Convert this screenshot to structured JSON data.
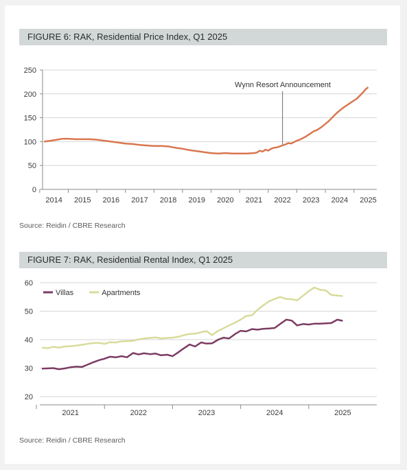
{
  "figure6": {
    "header": "FIGURE 6: RAK, Residential Price Index, Q1 2025",
    "source": "Source: Reidin / CBRE Research"
  },
  "figure7": {
    "header": "FIGURE 7: RAK, Residential Rental Index, Q1 2025",
    "source": "Source: Reidin / CBRE Research"
  },
  "chart_data": [
    {
      "type": "line",
      "title": "FIGURE 6: RAK, Residential Price Index, Q1 2025",
      "xlabel": "",
      "ylabel": "",
      "ylim": [
        0,
        250
      ],
      "yticks": [
        "0",
        "50",
        "100",
        "150",
        "200",
        "250"
      ],
      "xticks": [
        "2014",
        "2015",
        "2016",
        "2017",
        "2018",
        "2019",
        "2020",
        "2021",
        "2022",
        "2023",
        "2024",
        "2025"
      ],
      "xlim": [
        2013.6,
        2025.3
      ],
      "grid": true,
      "color": "#d9764f",
      "annotation": {
        "text": "Wynn Resort Announcement",
        "x": 2022.0,
        "y": 90
      },
      "series": [
        {
          "x": [
            2013.65,
            2013.9,
            2014.1,
            2014.3,
            2014.5,
            2014.75,
            2015.0,
            2015.25,
            2015.5,
            2015.75,
            2016.0,
            2016.25,
            2016.5,
            2016.75,
            2017.0,
            2017.25,
            2017.5,
            2017.75,
            2018.0,
            2018.25,
            2018.5,
            2018.75,
            2019.0,
            2019.25,
            2019.5,
            2019.75,
            2020.0,
            2020.25,
            2020.5,
            2020.75,
            2021.0,
            2021.1,
            2021.2,
            2021.3,
            2021.4,
            2021.5,
            2021.6,
            2021.7,
            2021.8,
            2021.9,
            2022.0,
            2022.1,
            2022.2,
            2022.3,
            2022.4,
            2022.5,
            2022.6,
            2022.7,
            2022.8,
            2022.9,
            2023.0,
            2023.1,
            2023.2,
            2023.3,
            2023.4,
            2023.5,
            2023.6,
            2023.7,
            2023.8,
            2023.9,
            2024.0,
            2024.1,
            2024.2,
            2024.3,
            2024.4,
            2024.5,
            2024.6,
            2024.7,
            2024.8,
            2024.9,
            2025.0
          ],
          "values": [
            100,
            102,
            104,
            106,
            106,
            105,
            105,
            105,
            104,
            102,
            100,
            98,
            96,
            95,
            93,
            92,
            91,
            91,
            90,
            87,
            85,
            82,
            80,
            78,
            76,
            75,
            76,
            75,
            75,
            75,
            76,
            77,
            81,
            79,
            83,
            81,
            85,
            87,
            88,
            90,
            92,
            94,
            97,
            96,
            99,
            102,
            104,
            107,
            110,
            114,
            118,
            122,
            124,
            128,
            132,
            137,
            142,
            148,
            154,
            160,
            165,
            170,
            174,
            178,
            182,
            186,
            190,
            196,
            202,
            209,
            214
          ]
        }
      ]
    },
    {
      "type": "line",
      "title": "FIGURE 7: RAK, Residential Rental Index, Q1 2025",
      "xlabel": "",
      "ylabel": "",
      "ylim": [
        20,
        60
      ],
      "yticks": [
        "20",
        "30",
        "40",
        "50",
        "60"
      ],
      "xticks": [
        "2021",
        "2022",
        "2023",
        "2024",
        "2025"
      ],
      "xlim": [
        2020.55,
        2025.5
      ],
      "grid": true,
      "legend": "top-left",
      "series": [
        {
          "name": "Villas",
          "color": "#7b3b63",
          "x": [
            2020.58,
            2020.67,
            2020.75,
            2020.83,
            2020.92,
            2021.0,
            2021.08,
            2021.17,
            2021.25,
            2021.33,
            2021.42,
            2021.5,
            2021.58,
            2021.67,
            2021.75,
            2021.83,
            2021.92,
            2022.0,
            2022.08,
            2022.17,
            2022.25,
            2022.33,
            2022.42,
            2022.5,
            2022.58,
            2022.67,
            2022.75,
            2022.83,
            2022.92,
            2023.0,
            2023.08,
            2023.17,
            2023.25,
            2023.33,
            2023.42,
            2023.5,
            2023.58,
            2023.67,
            2023.75,
            2023.83,
            2023.92,
            2024.0,
            2024.08,
            2024.17,
            2024.25,
            2024.33,
            2024.42,
            2024.5,
            2024.58,
            2024.67,
            2024.75,
            2024.83,
            2024.92,
            2025.0
          ],
          "values": [
            29.8,
            29.9,
            30.0,
            29.6,
            29.9,
            30.3,
            30.5,
            30.4,
            31.2,
            32.0,
            32.8,
            33.3,
            34.0,
            33.8,
            34.2,
            33.8,
            35.3,
            34.8,
            35.2,
            34.9,
            35.1,
            34.5,
            34.7,
            34.2,
            35.5,
            37.0,
            38.3,
            37.6,
            39.0,
            38.6,
            38.7,
            40.0,
            40.7,
            40.4,
            42.0,
            43.1,
            42.9,
            43.7,
            43.5,
            43.8,
            43.9,
            44.1,
            45.5,
            47.0,
            46.7,
            45.0,
            45.5,
            45.3,
            45.6,
            45.6,
            45.7,
            45.8,
            47.0,
            46.6
          ]
        },
        {
          "name": "Apartments",
          "color": "#d8db9a",
          "x": [
            2020.58,
            2020.67,
            2020.75,
            2020.83,
            2020.92,
            2021.0,
            2021.08,
            2021.17,
            2021.25,
            2021.33,
            2021.42,
            2021.5,
            2021.58,
            2021.67,
            2021.75,
            2021.83,
            2021.92,
            2022.0,
            2022.08,
            2022.17,
            2022.25,
            2022.33,
            2022.42,
            2022.5,
            2022.58,
            2022.67,
            2022.75,
            2022.83,
            2022.92,
            2023.0,
            2023.08,
            2023.17,
            2023.25,
            2023.33,
            2023.42,
            2023.5,
            2023.58,
            2023.67,
            2023.75,
            2023.83,
            2023.92,
            2024.0,
            2024.08,
            2024.17,
            2024.25,
            2024.33,
            2024.42,
            2024.5,
            2024.58,
            2024.67,
            2024.75,
            2024.83,
            2024.92,
            2025.0
          ],
          "values": [
            37.2,
            37.0,
            37.5,
            37.2,
            37.6,
            37.7,
            37.9,
            38.2,
            38.5,
            38.8,
            38.9,
            38.5,
            39.1,
            39.0,
            39.4,
            39.5,
            39.6,
            40.1,
            40.4,
            40.6,
            40.8,
            40.4,
            40.6,
            40.7,
            41.0,
            41.6,
            42.0,
            42.1,
            42.6,
            43.0,
            41.6,
            43.1,
            44.0,
            45.0,
            46.0,
            47.0,
            48.3,
            48.6,
            50.5,
            52.0,
            53.5,
            54.3,
            55.0,
            54.3,
            54.2,
            53.8,
            55.5,
            57.0,
            58.3,
            57.5,
            57.3,
            55.7,
            55.5,
            55.3
          ]
        }
      ]
    }
  ]
}
